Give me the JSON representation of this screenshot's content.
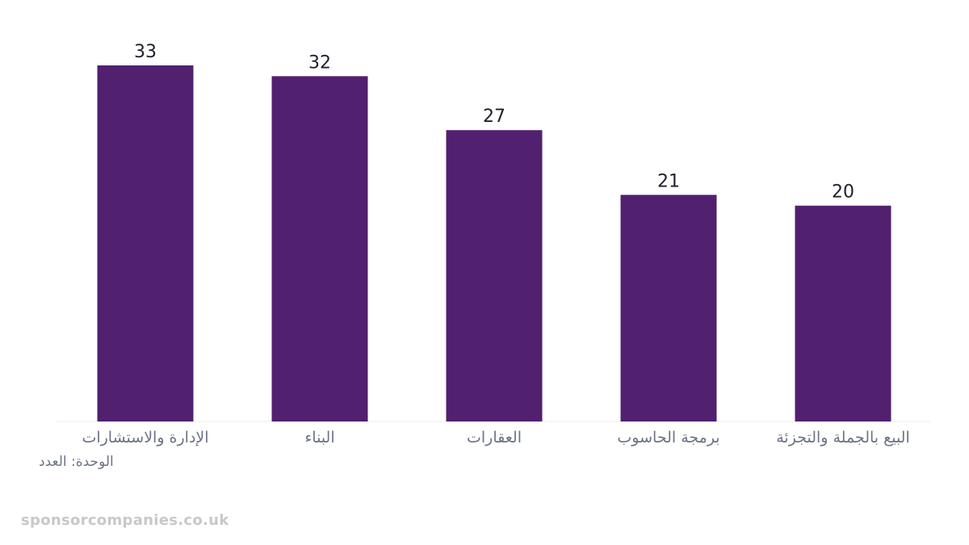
{
  "chart_data": {
    "type": "bar",
    "categories": [
      "الإدارة والاستشارات",
      "البناء",
      "العقارات",
      "برمجة الحاسوب",
      "البيع بالجملة والتجزئة"
    ],
    "values": [
      33,
      32,
      27,
      21,
      20
    ],
    "ylim": [
      0,
      33
    ],
    "grid": false,
    "bar_color": "#51206f",
    "unit_label": "الوحدة: العدد"
  },
  "watermark": "sponsorcompanies.co.uk"
}
